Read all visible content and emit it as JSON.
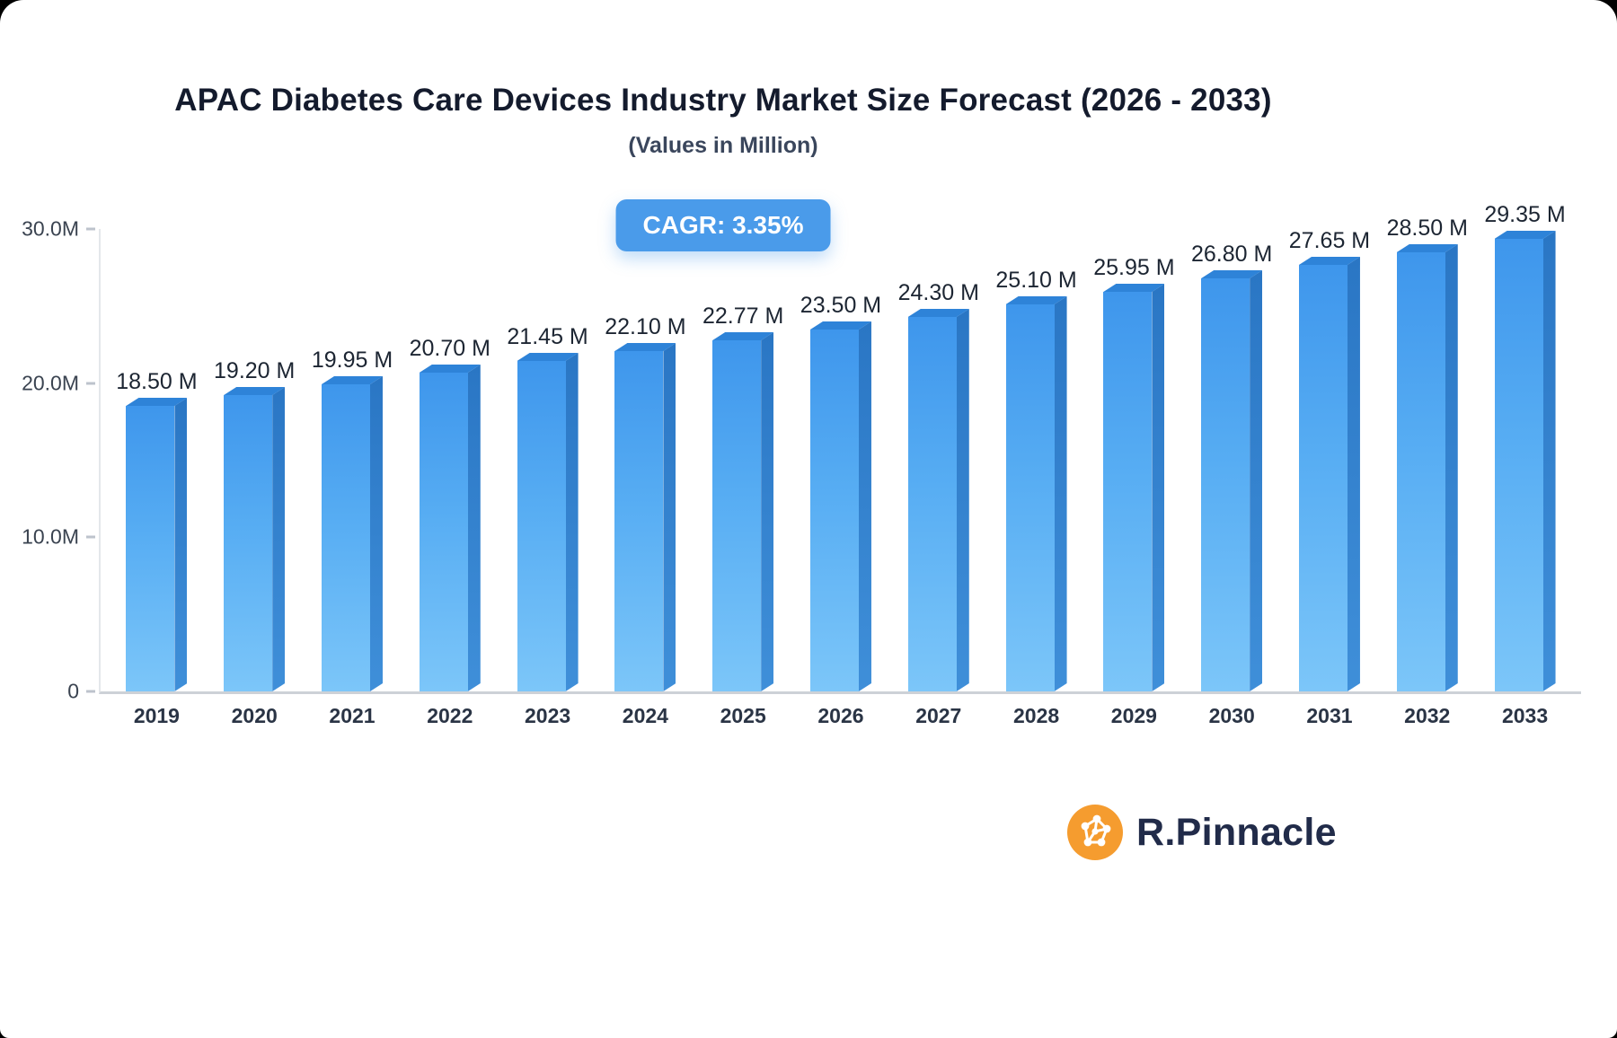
{
  "header": {
    "title": "APAC Diabetes Care Devices Industry Market Size Forecast (2026 - 2033)",
    "subtitle": "(Values in Million)",
    "cagr_label": "CAGR: 3.35%"
  },
  "chart_data": {
    "type": "bar",
    "title": "APAC Diabetes Care Devices Industry Market Size Forecast (2026 - 2033)",
    "subtitle": "(Values in Million)",
    "categories": [
      "2019",
      "2020",
      "2021",
      "2022",
      "2023",
      "2024",
      "2025",
      "2026",
      "2027",
      "2028",
      "2029",
      "2030",
      "2031",
      "2032",
      "2033"
    ],
    "values": [
      18.5,
      19.2,
      19.95,
      20.7,
      21.45,
      22.1,
      22.77,
      23.5,
      24.3,
      25.1,
      25.95,
      26.8,
      27.65,
      28.5,
      29.35
    ],
    "value_labels": [
      "18.50 M",
      "19.20 M",
      "19.95 M",
      "20.70 M",
      "21.45 M",
      "22.10 M",
      "22.77 M",
      "23.50 M",
      "24.30 M",
      "25.10 M",
      "25.95 M",
      "26.80 M",
      "27.65 M",
      "28.50 M",
      "29.35 M"
    ],
    "annotation": "CAGR: 3.35%",
    "xlabel": "",
    "ylabel": "",
    "ylim": [
      0,
      30
    ],
    "y_ticks": [
      {
        "value": 0,
        "label": "0"
      },
      {
        "value": 10,
        "label": "10.0M"
      },
      {
        "value": 20,
        "label": "20.0M"
      },
      {
        "value": 30,
        "label": "30.0M"
      }
    ],
    "grid": false,
    "legend": false,
    "colors": {
      "bar_front_top": "#3E96EC",
      "bar_front_bottom": "#7CC6F9",
      "bar_side": "#2A76C4",
      "bar_cap": "#2E83D8",
      "badge_background": "#4A9BEA",
      "badge_text": "#FFFFFF",
      "axis_line": "#CDD1D7"
    }
  },
  "branding": {
    "logo_text": "R.Pinnacle",
    "logo_icon": "network-molecule-icon",
    "logo_icon_color": "#F59C2F",
    "logo_text_color": "#212B49"
  }
}
